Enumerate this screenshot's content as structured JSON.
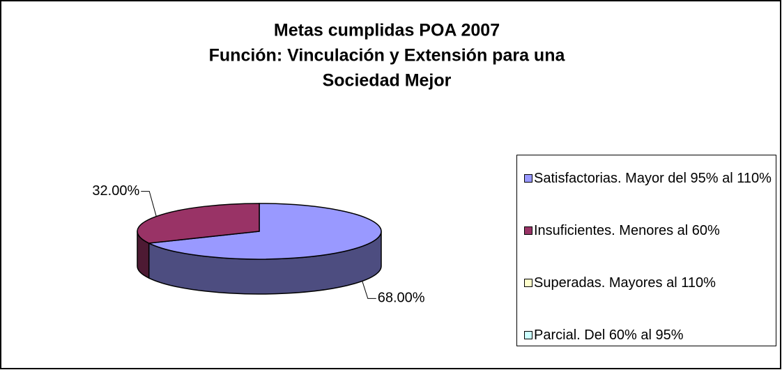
{
  "chart_data": {
    "type": "pie3d",
    "title": [
      "Metas cumplidas POA 2007",
      "Función: Vinculación y Extensión para una",
      "Sociedad Mejor"
    ],
    "categories": [
      "Satisfactorias. Mayor del 95% al 110%",
      "Insuficientes. Menores al 60%",
      "Superadas. Mayores al 110%",
      "Parcial. Del 60% al 95%"
    ],
    "values": [
      68,
      32,
      0,
      0
    ],
    "value_labels": [
      "68.00%",
      "32.00%",
      null,
      null
    ],
    "colors": [
      "#9999ff",
      "#993366",
      "#ffffcc",
      "#ccffff"
    ],
    "legend": "right"
  }
}
